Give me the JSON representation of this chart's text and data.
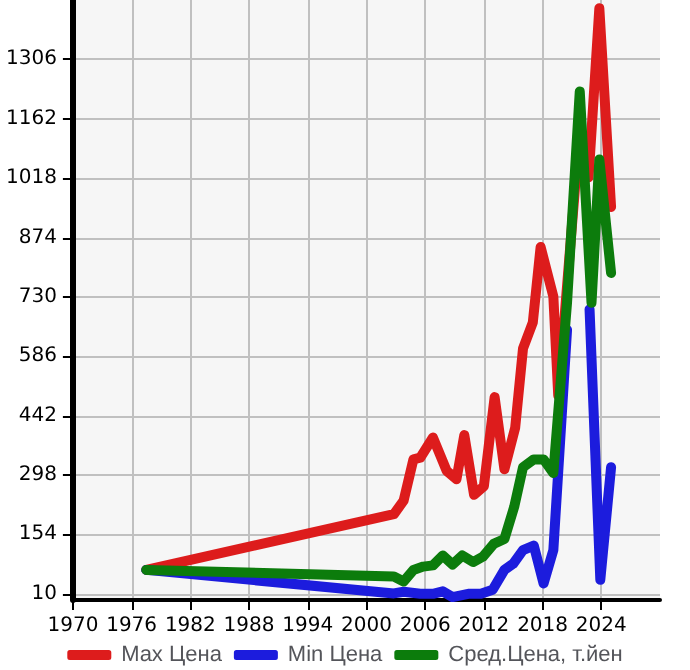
{
  "chart_data": {
    "type": "line",
    "x": [
      1977.5,
      2002.8,
      2003.8,
      2004.8,
      2005.5,
      2006.8,
      2008.2,
      2009.2,
      2010,
      2011,
      2012,
      2013.1,
      2014.1,
      2015.2,
      2016,
      2017,
      2017.8,
      2019.1,
      2019.6,
      2021.5,
      2022.7,
      2023.8,
      2025
    ],
    "series": [
      {
        "name": "Max Цена",
        "color": "#dd1c1c",
        "values": [
          68,
          203,
          236,
          336,
          340,
          389,
          308,
          288,
          395,
          250,
          271,
          487,
          312,
          413,
          605,
          668,
          851,
          731,
          491,
          1050,
          1020,
          1430,
          948
        ]
      },
      {
        "name": "Min Цена",
        "color": "#1c1cdd",
        "x": [
          1977.5,
          2002.8,
          2003.8,
          2005.5,
          2006.8,
          2007.8,
          2008.8,
          2010.4,
          2011.7,
          2012.9,
          2014.1,
          2015,
          2016,
          2017.1,
          2018.1,
          2019.1,
          2020.5,
          2021.8,
          2022.8,
          2023.9,
          2025
        ],
        "values": [
          68,
          11,
          15,
          10,
          10,
          16,
          2,
          10,
          10,
          20,
          68,
          83,
          116,
          127,
          35,
          116,
          650,
          null,
          700,
          44,
          317
        ]
      },
      {
        "name": "Сред.Цена, т.йен",
        "color": "#0c7c0c",
        "x": [
          1977.5,
          2002.8,
          2003.8,
          2004.8,
          2005.8,
          2006.8,
          2007.8,
          2008.8,
          2009.8,
          2010.9,
          2011.9,
          2013,
          2014.1,
          2015.1,
          2016,
          2017.1,
          2018.1,
          2019.1,
          2020.5,
          2021.8,
          2023,
          2023.8,
          2025
        ],
        "values": [
          68,
          52,
          40,
          68,
          76,
          79,
          103,
          81,
          103,
          87,
          100,
          131,
          143,
          221,
          317,
          336,
          336,
          303,
          716,
          1228,
          716,
          1063,
          788
        ]
      }
    ],
    "xlim": [
      1970,
      2030
    ],
    "xticks": [
      1970,
      1976,
      1982,
      1988,
      1994,
      2000,
      2006,
      2012,
      2018,
      2024
    ],
    "ylim": [
      -5,
      1450
    ],
    "yticks": [
      10,
      154,
      298,
      442,
      586,
      730,
      874,
      1018,
      1162,
      1306
    ],
    "grid": true,
    "legend": "bottom",
    "marker": "none",
    "line_style": "solid"
  }
}
